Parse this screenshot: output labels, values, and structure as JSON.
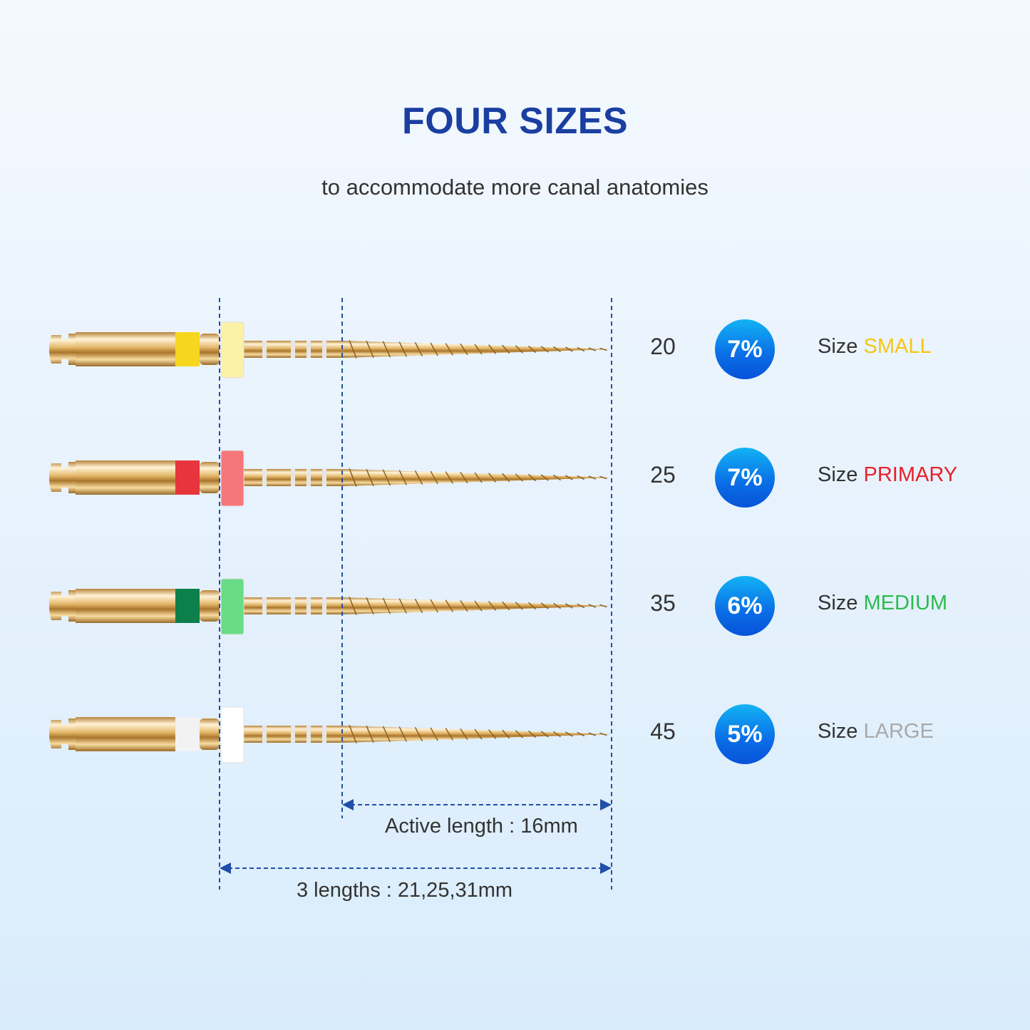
{
  "header": {
    "title": "FOUR SIZES",
    "subtitle": "to accommodate more canal anatomies"
  },
  "files": [
    {
      "tip_size": "20",
      "taper": "7%",
      "size_prefix": "Size",
      "size_name": "SMALL",
      "size_color": "#f5c518",
      "ring_color": "#f6d61e",
      "stopper_color": "#fbf2a8"
    },
    {
      "tip_size": "25",
      "taper": "7%",
      "size_prefix": "Size",
      "size_name": "PRIMARY",
      "size_color": "#e8202a",
      "ring_color": "#e8343c",
      "stopper_color": "#f6767a"
    },
    {
      "tip_size": "35",
      "taper": "6%",
      "size_prefix": "Size",
      "size_name": "MEDIUM",
      "size_color": "#2dbb4f",
      "ring_color": "#0c7f4a",
      "stopper_color": "#69dc86"
    },
    {
      "tip_size": "45",
      "taper": "5%",
      "size_prefix": "Size",
      "size_name": "LARGE",
      "size_color": "#a9a9a9",
      "ring_color": "#f2f2f2",
      "stopper_color": "#ffffff"
    }
  ],
  "dimensions": {
    "active_length": "Active length : 16mm",
    "total_lengths": "3 lengths : 21,25,31mm"
  },
  "colors": {
    "accent": "#1a3fa0",
    "dashed_line": "#1f4fa8",
    "gold": "#d9a650"
  }
}
